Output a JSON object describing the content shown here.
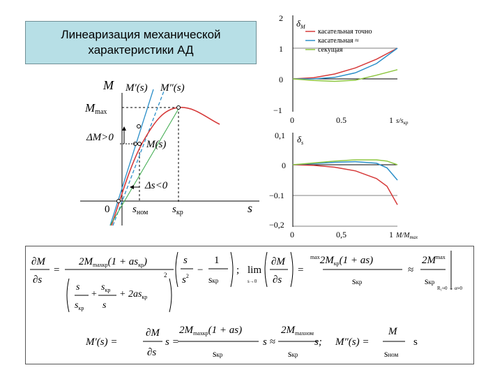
{
  "title": {
    "line1": "Линеаризация механической",
    "line2": "характеристики АД"
  },
  "main_graph": {
    "ylabel": "M",
    "labels": {
      "mprime": "M′(s)",
      "mdprime": "M″(s)",
      "mmax": "M",
      "mmax_sub": "max",
      "dm": "ΔM>0",
      "ms": "M(s)",
      "ds": "Δs<0",
      "zero": "0",
      "snom": "s",
      "snom_sub": "ном",
      "skr": "s",
      "skr_sub": "кр",
      "xlabel": "s"
    }
  },
  "chart_data": [
    {
      "type": "line",
      "ylabel": "δ",
      "ylabel_sub": "M",
      "xlabel": "s/s",
      "xlabel_sub": "кр",
      "xlim": [
        0,
        1
      ],
      "ylim": [
        -1,
        2
      ],
      "yticks": [
        "2",
        "1",
        "0",
        "−1"
      ],
      "xticks": [
        "0",
        "0.5",
        "1"
      ],
      "legend": [
        "касательная точно",
        "касательная ≈",
        "секущая"
      ],
      "colors": [
        "#d63a3a",
        "#2c8fc9",
        "#8dc63f"
      ],
      "series": [
        {
          "name": "касательная точно",
          "x": [
            0,
            0.2,
            0.4,
            0.6,
            0.8,
            1.0
          ],
          "y": [
            0,
            0.04,
            0.16,
            0.36,
            0.64,
            1.0
          ]
        },
        {
          "name": "касательная ≈",
          "x": [
            0,
            0.2,
            0.4,
            0.6,
            0.8,
            1.0
          ],
          "y": [
            0,
            0.0,
            0.05,
            0.2,
            0.5,
            1.0
          ]
        },
        {
          "name": "секущая",
          "x": [
            0,
            0.2,
            0.4,
            0.6,
            0.8,
            1.0
          ],
          "y": [
            0,
            -0.05,
            -0.08,
            -0.04,
            0.12,
            0.3
          ]
        }
      ]
    },
    {
      "type": "line",
      "ylabel": "δ",
      "ylabel_sub": "s",
      "xlabel": "M/M",
      "xlabel_sub": "max",
      "xlim": [
        0,
        1
      ],
      "ylim": [
        -0.2,
        0.1
      ],
      "yticks": [
        "0,1",
        "0",
        "−0.1",
        "−0,2"
      ],
      "xticks": [
        "0",
        "0,5",
        "1"
      ],
      "colors": [
        "#d63a3a",
        "#2c8fc9",
        "#8dc63f"
      ],
      "series": [
        {
          "x": [
            0,
            0.2,
            0.4,
            0.6,
            0.8,
            0.9,
            1.0
          ],
          "y": [
            0,
            -0.002,
            -0.008,
            -0.02,
            -0.045,
            -0.07,
            -0.13
          ]
        },
        {
          "x": [
            0,
            0.2,
            0.4,
            0.6,
            0.8,
            0.9,
            1.0
          ],
          "y": [
            0,
            0.004,
            0.008,
            0.01,
            0.005,
            -0.01,
            -0.05
          ]
        },
        {
          "x": [
            0,
            0.2,
            0.4,
            0.6,
            0.8,
            0.9,
            1.0
          ],
          "y": [
            0,
            0.006,
            0.012,
            0.016,
            0.016,
            0.012,
            0.0
          ]
        }
      ]
    }
  ],
  "formulas": {
    "row1": {
      "dm_ds": "∂M",
      "ds": "∂s",
      "eq": "=",
      "num2m": "2M",
      "num2m_sub": "max",
      "kr": "кр",
      "one_as": "(1 + as",
      "close": ")",
      "kr2": "кр",
      "s_over": "s",
      "s2": "s",
      "s2_exp": "2",
      "minus": "−",
      "one": "1",
      "s_kr": "s",
      "s_kr_sub": "кр",
      "den_s": "s",
      "den_plus": "+",
      "den_skr": "s",
      "den_skr_sub": "кр",
      "den_2as": "+ 2as",
      "den_2as_sub": "кр",
      "den_skr2": "s",
      "den_skr2_sub": "кр",
      "den_s2": "s",
      "paren_exp": "2",
      "semicolon": ";",
      "lim": "lim",
      "lim_sub": "s→0",
      "r_eq": "=",
      "r_2m": "2M",
      "r_max": "max",
      "r_kr": "кр",
      "r_one_as": "(1 + as",
      "r_close": ")",
      "r_skr": "s",
      "r_skr_sub": "кр",
      "approx": "≈",
      "r2_2m": "2M",
      "r2_max": "max",
      "r2_skr": "s",
      "r2_skr_sub": "кр",
      "cond": "R₁≈0 → α≈0"
    },
    "row2": {
      "mprime": "M′(s) =",
      "dm": "∂M",
      "ds": "∂s",
      "s1": "s =",
      "n2m": "2M",
      "n_max": "max",
      "n_kr": "кр",
      "n_one_as": "(1 + as",
      "n_close": ")",
      "den_s": "s",
      "den_sub": "кр",
      "s2": "s ≈",
      "m2": "2M",
      "m2_sub": "max",
      "m2_nom": "ном",
      "den2_s": "s",
      "den2_sub": "кр",
      "s3": "s;",
      "mdprime": "M″(s) =",
      "m3": "M",
      "den3_s": "s",
      "den3_sub": "ном",
      "s4": "s"
    }
  }
}
